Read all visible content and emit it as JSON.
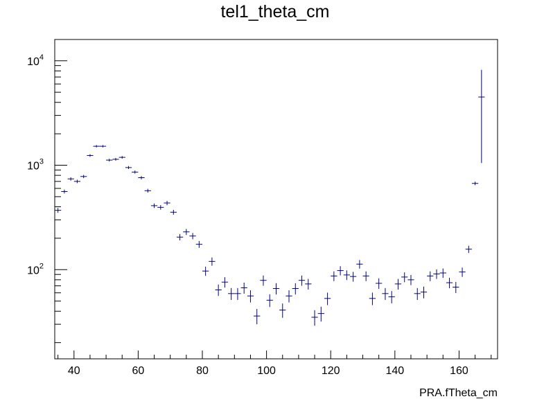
{
  "chart_data": {
    "type": "scatter",
    "title": "tel1_theta_cm",
    "xlabel": "PRA.fTheta_cm",
    "ylabel": "",
    "xlim": [
      34,
      172
    ],
    "ylim": [
      14,
      16000
    ],
    "yscale": "log",
    "grid": false,
    "legend": "none",
    "marker_color": "#00007f",
    "x_ticks": [
      "40",
      "60",
      "80",
      "100",
      "120",
      "140",
      "160"
    ],
    "y_ticks": [
      {
        "base": "10",
        "exp": "2",
        "value": 100
      },
      {
        "base": "10",
        "exp": "3",
        "value": 1000
      },
      {
        "base": "10",
        "exp": "4",
        "value": 10000
      }
    ],
    "bin_width": 2,
    "points": [
      {
        "x": 35,
        "y": 370
      },
      {
        "x": 37,
        "y": 560
      },
      {
        "x": 39,
        "y": 740
      },
      {
        "x": 41,
        "y": 700
      },
      {
        "x": 43,
        "y": 780
      },
      {
        "x": 45,
        "y": 1240
      },
      {
        "x": 47,
        "y": 1520
      },
      {
        "x": 49,
        "y": 1520
      },
      {
        "x": 51,
        "y": 1120
      },
      {
        "x": 53,
        "y": 1140
      },
      {
        "x": 55,
        "y": 1190
      },
      {
        "x": 57,
        "y": 950
      },
      {
        "x": 59,
        "y": 860
      },
      {
        "x": 61,
        "y": 760
      },
      {
        "x": 63,
        "y": 570
      },
      {
        "x": 65,
        "y": 410
      },
      {
        "x": 67,
        "y": 395
      },
      {
        "x": 69,
        "y": 435
      },
      {
        "x": 71,
        "y": 355
      },
      {
        "x": 73,
        "y": 205
      },
      {
        "x": 75,
        "y": 230
      },
      {
        "x": 77,
        "y": 210
      },
      {
        "x": 79,
        "y": 175
      },
      {
        "x": 81,
        "y": 97
      },
      {
        "x": 83,
        "y": 120
      },
      {
        "x": 85,
        "y": 64
      },
      {
        "x": 87,
        "y": 76
      },
      {
        "x": 89,
        "y": 59
      },
      {
        "x": 91,
        "y": 59
      },
      {
        "x": 93,
        "y": 67
      },
      {
        "x": 95,
        "y": 56
      },
      {
        "x": 97,
        "y": 36
      },
      {
        "x": 99,
        "y": 79
      },
      {
        "x": 101,
        "y": 51
      },
      {
        "x": 103,
        "y": 66
      },
      {
        "x": 105,
        "y": 41
      },
      {
        "x": 107,
        "y": 56
      },
      {
        "x": 109,
        "y": 66
      },
      {
        "x": 111,
        "y": 79
      },
      {
        "x": 113,
        "y": 73
      },
      {
        "x": 115,
        "y": 35
      },
      {
        "x": 117,
        "y": 38
      },
      {
        "x": 119,
        "y": 53
      },
      {
        "x": 121,
        "y": 87
      },
      {
        "x": 123,
        "y": 98
      },
      {
        "x": 125,
        "y": 89
      },
      {
        "x": 127,
        "y": 86
      },
      {
        "x": 129,
        "y": 113
      },
      {
        "x": 131,
        "y": 87
      },
      {
        "x": 133,
        "y": 53
      },
      {
        "x": 135,
        "y": 74
      },
      {
        "x": 137,
        "y": 59
      },
      {
        "x": 139,
        "y": 55
      },
      {
        "x": 141,
        "y": 73
      },
      {
        "x": 143,
        "y": 85
      },
      {
        "x": 145,
        "y": 80
      },
      {
        "x": 147,
        "y": 59
      },
      {
        "x": 149,
        "y": 61
      },
      {
        "x": 151,
        "y": 87
      },
      {
        "x": 153,
        "y": 91
      },
      {
        "x": 155,
        "y": 93
      },
      {
        "x": 157,
        "y": 75
      },
      {
        "x": 159,
        "y": 68
      },
      {
        "x": 161,
        "y": 95
      },
      {
        "x": 163,
        "y": 157
      },
      {
        "x": 165,
        "y": 670
      },
      {
        "x": 167,
        "y": 4500,
        "yerr_low": 1050,
        "yerr_high": 8200
      }
    ]
  }
}
